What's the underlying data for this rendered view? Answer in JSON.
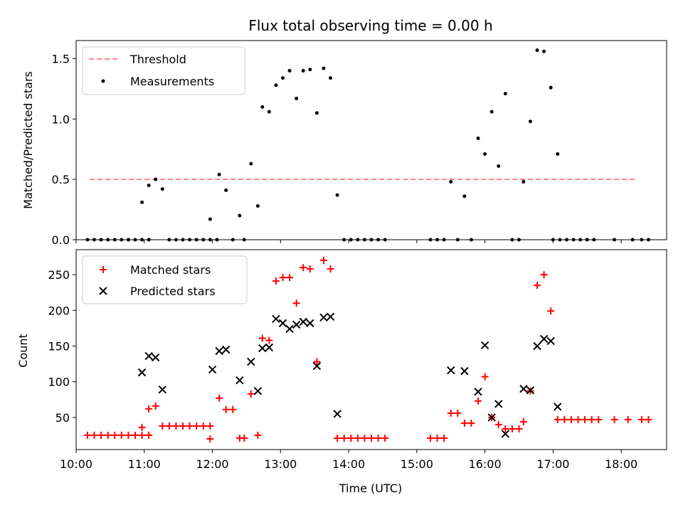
{
  "chart_data": [
    {
      "type": "scatter",
      "title": "Flux total observing time = 0.00 h",
      "xlabel": "",
      "ylabel": "Matched/Predicted stars",
      "xlim": [
        "10:00",
        "18:40"
      ],
      "ylim": [
        0,
        1.65
      ],
      "yticks": [
        "0.0",
        "0.5",
        "1.0",
        "1.5"
      ],
      "xticks": [
        "10:00",
        "11:00",
        "12:00",
        "13:00",
        "14:00",
        "15:00",
        "16:00",
        "17:00",
        "18:00"
      ],
      "grid": false,
      "legend": {
        "position": "upper-left",
        "entries": [
          "Threshold",
          "Measurements"
        ]
      },
      "colors": {
        "threshold": "#ff7f7f",
        "measurements": "#000000"
      },
      "threshold": {
        "name": "Threshold",
        "y": 0.5,
        "x_range": [
          "10:12",
          "18:14"
        ]
      },
      "series": [
        {
          "name": "Measurements",
          "marker": "dot",
          "points": [
            [
              "10:10",
              0
            ],
            [
              "10:16",
              0
            ],
            [
              "10:22",
              0
            ],
            [
              "10:28",
              0
            ],
            [
              "10:34",
              0
            ],
            [
              "10:40",
              0
            ],
            [
              "10:46",
              0
            ],
            [
              "10:52",
              0
            ],
            [
              "10:58",
              0
            ],
            [
              "11:04",
              0
            ],
            [
              "10:58",
              0.31
            ],
            [
              "11:04",
              0.45
            ],
            [
              "11:10",
              0.5
            ],
            [
              "11:16",
              0.42
            ],
            [
              "11:22",
              0
            ],
            [
              "11:28",
              0
            ],
            [
              "11:34",
              0
            ],
            [
              "11:40",
              0
            ],
            [
              "11:46",
              0
            ],
            [
              "11:52",
              0
            ],
            [
              "11:58",
              0
            ],
            [
              "12:04",
              0
            ],
            [
              "11:58",
              0.17
            ],
            [
              "12:06",
              0.54
            ],
            [
              "12:12",
              0.41
            ],
            [
              "12:18",
              0
            ],
            [
              "12:24",
              0.2
            ],
            [
              "12:28",
              0
            ],
            [
              "12:34",
              0.63
            ],
            [
              "12:40",
              0.28
            ],
            [
              "12:44",
              1.1
            ],
            [
              "12:50",
              1.06
            ],
            [
              "12:56",
              1.28
            ],
            [
              "13:02",
              1.34
            ],
            [
              "13:08",
              1.4
            ],
            [
              "13:14",
              1.17
            ],
            [
              "13:20",
              1.4
            ],
            [
              "13:26",
              1.41
            ],
            [
              "13:32",
              1.05
            ],
            [
              "13:38",
              1.42
            ],
            [
              "13:44",
              1.34
            ],
            [
              "13:50",
              0.37
            ],
            [
              "13:56",
              0
            ],
            [
              "14:02",
              0
            ],
            [
              "14:08",
              0
            ],
            [
              "14:14",
              0
            ],
            [
              "14:20",
              0
            ],
            [
              "14:26",
              0
            ],
            [
              "14:32",
              0
            ],
            [
              "15:12",
              0
            ],
            [
              "15:18",
              0
            ],
            [
              "15:24",
              0
            ],
            [
              "15:30",
              0.48
            ],
            [
              "15:36",
              0
            ],
            [
              "15:42",
              0.36
            ],
            [
              "15:48",
              0
            ],
            [
              "15:54",
              0.84
            ],
            [
              "16:00",
              0.71
            ],
            [
              "16:06",
              1.06
            ],
            [
              "16:12",
              0.61
            ],
            [
              "16:18",
              1.21
            ],
            [
              "16:24",
              0
            ],
            [
              "16:30",
              0
            ],
            [
              "16:34",
              0.48
            ],
            [
              "16:40",
              0.98
            ],
            [
              "16:46",
              1.57
            ],
            [
              "16:52",
              1.56
            ],
            [
              "16:58",
              1.26
            ],
            [
              "17:04",
              0.71
            ],
            [
              "17:00",
              0
            ],
            [
              "17:06",
              0
            ],
            [
              "17:12",
              0
            ],
            [
              "17:18",
              0
            ],
            [
              "17:24",
              0
            ],
            [
              "17:30",
              0
            ],
            [
              "17:36",
              0
            ],
            [
              "17:54",
              0
            ],
            [
              "18:10",
              0
            ],
            [
              "18:18",
              0
            ],
            [
              "18:24",
              0
            ]
          ]
        }
      ]
    },
    {
      "type": "scatter",
      "title": "",
      "xlabel": "Time (UTC)",
      "ylabel": "Count",
      "xlim": [
        "10:00",
        "18:40"
      ],
      "ylim": [
        5,
        285
      ],
      "yticks": [
        "50",
        "100",
        "150",
        "200",
        "250"
      ],
      "xticks": [
        "10:00",
        "11:00",
        "12:00",
        "13:00",
        "14:00",
        "15:00",
        "16:00",
        "17:00",
        "18:00"
      ],
      "grid": false,
      "legend": {
        "position": "upper-left",
        "entries": [
          "Matched stars",
          "Predicted stars"
        ]
      },
      "colors": {
        "matched": "#ff0000",
        "predicted": "#000000"
      },
      "series": [
        {
          "name": "Matched stars",
          "marker": "plus",
          "points": [
            [
              "10:10",
              25
            ],
            [
              "10:16",
              25
            ],
            [
              "10:22",
              25
            ],
            [
              "10:28",
              25
            ],
            [
              "10:34",
              25
            ],
            [
              "10:40",
              25
            ],
            [
              "10:46",
              25
            ],
            [
              "10:52",
              25
            ],
            [
              "10:58",
              25
            ],
            [
              "11:04",
              25
            ],
            [
              "10:58",
              36
            ],
            [
              "11:04",
              62
            ],
            [
              "11:10",
              66
            ],
            [
              "11:16",
              38
            ],
            [
              "11:22",
              38
            ],
            [
              "11:28",
              38
            ],
            [
              "11:34",
              38
            ],
            [
              "11:40",
              38
            ],
            [
              "11:46",
              38
            ],
            [
              "11:52",
              38
            ],
            [
              "11:58",
              38
            ],
            [
              "11:58",
              20
            ],
            [
              "12:06",
              77
            ],
            [
              "12:12",
              61
            ],
            [
              "12:18",
              61
            ],
            [
              "12:24",
              21
            ],
            [
              "12:28",
              21
            ],
            [
              "12:34",
              83
            ],
            [
              "12:40",
              25
            ],
            [
              "12:44",
              161
            ],
            [
              "12:50",
              158
            ],
            [
              "12:56",
              241
            ],
            [
              "13:02",
              246
            ],
            [
              "13:08",
              246
            ],
            [
              "13:14",
              210
            ],
            [
              "13:20",
              260
            ],
            [
              "13:26",
              258
            ],
            [
              "13:32",
              128
            ],
            [
              "13:38",
              270
            ],
            [
              "13:44",
              258
            ],
            [
              "13:50",
              21
            ],
            [
              "13:56",
              21
            ],
            [
              "14:02",
              21
            ],
            [
              "14:08",
              21
            ],
            [
              "14:14",
              21
            ],
            [
              "14:20",
              21
            ],
            [
              "14:26",
              21
            ],
            [
              "14:32",
              21
            ],
            [
              "15:12",
              21
            ],
            [
              "15:18",
              21
            ],
            [
              "15:24",
              21
            ],
            [
              "15:30",
              56
            ],
            [
              "15:36",
              56
            ],
            [
              "15:42",
              42
            ],
            [
              "15:48",
              42
            ],
            [
              "15:54",
              73
            ],
            [
              "16:00",
              107
            ],
            [
              "16:06",
              50
            ],
            [
              "16:12",
              40
            ],
            [
              "16:18",
              34
            ],
            [
              "16:24",
              34
            ],
            [
              "16:30",
              34
            ],
            [
              "16:34",
              44
            ],
            [
              "16:40",
              87
            ],
            [
              "16:46",
              235
            ],
            [
              "16:52",
              250
            ],
            [
              "16:58",
              199
            ],
            [
              "17:04",
              47
            ],
            [
              "17:10",
              47
            ],
            [
              "17:16",
              47
            ],
            [
              "17:22",
              47
            ],
            [
              "17:28",
              47
            ],
            [
              "17:34",
              47
            ],
            [
              "17:40",
              47
            ],
            [
              "17:54",
              47
            ],
            [
              "18:06",
              47
            ],
            [
              "18:18",
              47
            ],
            [
              "18:24",
              47
            ]
          ]
        },
        {
          "name": "Predicted stars",
          "marker": "x",
          "points": [
            [
              "10:58",
              113
            ],
            [
              "11:04",
              136
            ],
            [
              "11:10",
              134
            ],
            [
              "11:16",
              89
            ],
            [
              "12:00",
              117
            ],
            [
              "12:06",
              143
            ],
            [
              "12:12",
              145
            ],
            [
              "12:24",
              102
            ],
            [
              "12:34",
              128
            ],
            [
              "12:40",
              87
            ],
            [
              "12:44",
              147
            ],
            [
              "12:50",
              148
            ],
            [
              "12:56",
              188
            ],
            [
              "13:02",
              182
            ],
            [
              "13:08",
              174
            ],
            [
              "13:14",
              180
            ],
            [
              "13:20",
              184
            ],
            [
              "13:26",
              182
            ],
            [
              "13:32",
              122
            ],
            [
              "13:38",
              190
            ],
            [
              "13:44",
              191
            ],
            [
              "13:50",
              55
            ],
            [
              "15:30",
              116
            ],
            [
              "15:42",
              115
            ],
            [
              "15:54",
              86
            ],
            [
              "16:00",
              151
            ],
            [
              "16:06",
              50
            ],
            [
              "16:12",
              69
            ],
            [
              "16:18",
              27
            ],
            [
              "16:34",
              90
            ],
            [
              "16:40",
              88
            ],
            [
              "16:46",
              150
            ],
            [
              "16:52",
              160
            ],
            [
              "16:58",
              157
            ],
            [
              "17:04",
              65
            ]
          ]
        }
      ]
    }
  ]
}
